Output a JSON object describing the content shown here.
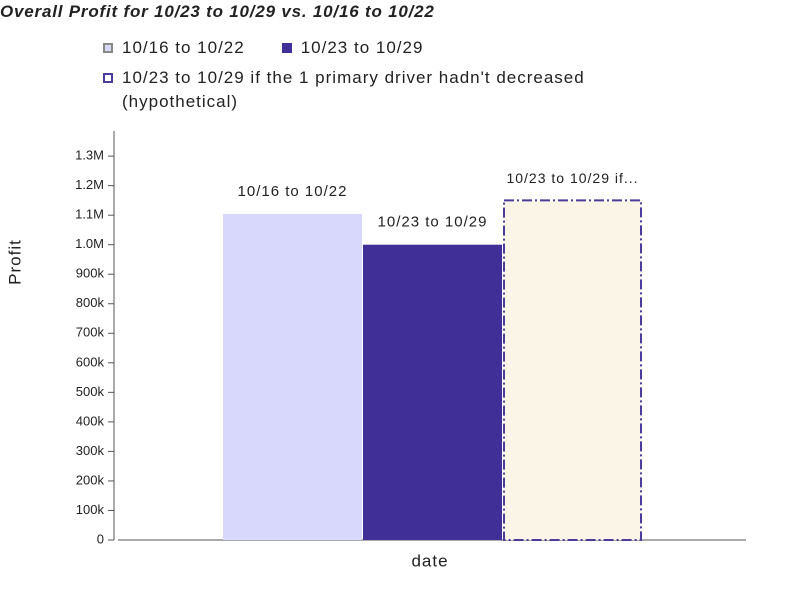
{
  "chart_data": {
    "type": "bar",
    "title": "Overall Profit for 10/23 to 10/29 vs. 10/16 to 10/22",
    "x_label": "date",
    "y_label": "Profit",
    "categories": [
      null
    ],
    "series": [
      {
        "name": "10/16 to 10/22",
        "color": "#d8d8fc",
        "border": "#d8d8fc",
        "legend_fill": "#d8d8fc",
        "bar_label": "10/16 to 10/22",
        "values": [
          1104000
        ]
      },
      {
        "name": "10/23 to 10/29",
        "color": "#3f2f96",
        "border": "#3f2f96",
        "legend_fill": "#3f2f96",
        "bar_label": "10/23 to 10/29",
        "values": [
          1000000
        ]
      },
      {
        "name": "10/23 to 10/29 if the 1 primary driver hadn't decreased (hypothetical)",
        "color": "#faf5e6",
        "border": "#4b3b9a",
        "legend_fill": "#ffffff",
        "dashed": true,
        "bar_label": "10/23 to 10/29 if...",
        "values": [
          1150000
        ]
      }
    ],
    "ylim": [
      0,
      1385000
    ],
    "yticks": [
      0,
      {
        "value": 100000,
        "label": "100k"
      },
      {
        "value": 200000,
        "label": "200k"
      },
      {
        "value": 300000,
        "label": "300k"
      },
      {
        "value": 400000,
        "label": "400k"
      },
      {
        "value": 500000,
        "label": "500k"
      },
      {
        "value": 600000,
        "label": "600k"
      },
      {
        "value": 700000,
        "label": "700k"
      },
      {
        "value": 800000,
        "label": "800k"
      },
      {
        "value": 900000,
        "label": "900k"
      },
      {
        "value": 1000000,
        "label": "1.0M"
      },
      {
        "value": 1100000,
        "label": "1.1M"
      },
      {
        "value": 1200000,
        "label": "1.2M"
      },
      {
        "value": 1300000,
        "label": "1.3M"
      }
    ],
    "grid": false
  }
}
